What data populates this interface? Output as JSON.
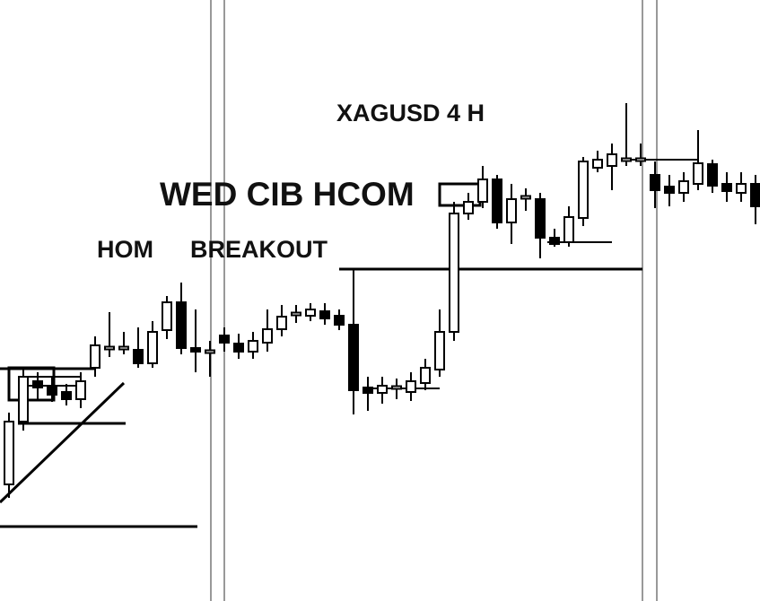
{
  "chart_data": {
    "type": "candlestick",
    "title": "XAGUSD 4 H",
    "annotations": [
      "WED CIB HCOM",
      "HOM",
      "BREAKOUT"
    ],
    "categories": [
      null,
      null,
      null,
      null,
      null,
      null,
      null,
      null,
      null,
      null,
      null,
      null,
      null,
      null,
      null,
      null,
      null,
      null,
      null,
      null,
      null,
      null,
      null,
      null,
      null,
      null,
      null,
      null,
      null,
      null,
      null,
      null,
      null,
      null,
      null,
      null,
      null,
      null,
      null,
      null,
      null,
      null,
      null,
      null,
      null,
      null,
      null,
      null,
      null,
      null,
      null,
      null,
      null
    ],
    "open": [
      130,
      200,
      245,
      238,
      233,
      225,
      260,
      282,
      282,
      280,
      265,
      302,
      333,
      282,
      278,
      296,
      287,
      278,
      288,
      303,
      320,
      318,
      323,
      318,
      308,
      238,
      232,
      238,
      233,
      243,
      258,
      300,
      432,
      445,
      470,
      422,
      450,
      448,
      405,
      400,
      427,
      483,
      485,
      492,
      492,
      475,
      462,
      455,
      465,
      487,
      465,
      455,
      465
    ],
    "high": [
      210,
      260,
      255,
      250,
      242,
      255,
      295,
      322,
      300,
      305,
      312,
      340,
      355,
      325,
      290,
      305,
      298,
      300,
      325,
      330,
      330,
      332,
      332,
      325,
      370,
      250,
      250,
      248,
      255,
      270,
      325,
      445,
      455,
      485,
      475,
      465,
      460,
      455,
      415,
      440,
      495,
      502,
      510,
      555,
      510,
      490,
      475,
      478,
      525,
      492,
      478,
      478,
      475
    ],
    "low": [
      115,
      190,
      225,
      222,
      218,
      215,
      250,
      272,
      275,
      260,
      260,
      292,
      275,
      255,
      250,
      278,
      270,
      270,
      278,
      295,
      310,
      312,
      308,
      302,
      208,
      212,
      220,
      225,
      223,
      235,
      250,
      290,
      425,
      438,
      415,
      398,
      435,
      382,
      395,
      395,
      418,
      478,
      458,
      485,
      485,
      438,
      440,
      445,
      458,
      455,
      445,
      445,
      420
    ],
    "close": [
      200,
      250,
      238,
      230,
      225,
      245,
      285,
      282,
      282,
      265,
      300,
      333,
      282,
      278,
      278,
      288,
      278,
      290,
      303,
      317,
      320,
      325,
      315,
      308,
      235,
      232,
      240,
      238,
      245,
      260,
      300,
      432,
      445,
      470,
      422,
      448,
      450,
      405,
      398,
      428,
      490,
      492,
      498,
      492,
      492,
      458,
      455,
      468,
      488,
      463,
      457,
      465,
      440
    ],
    "ylim": [
      0,
      670
    ],
    "color": "#000000"
  }
}
